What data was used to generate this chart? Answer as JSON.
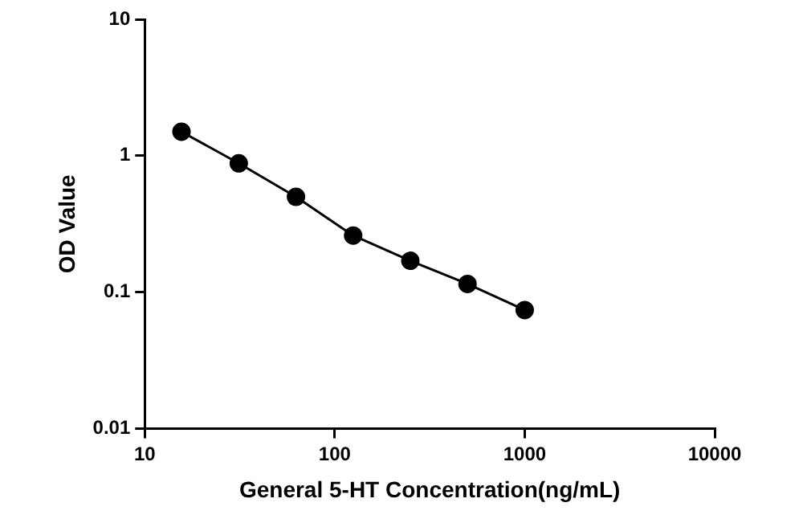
{
  "chart_data": {
    "type": "line",
    "xlabel": "General 5-HT Concentration(ng/mL)",
    "ylabel": "OD Value",
    "x": [
      15.6,
      31.25,
      62.5,
      125,
      250,
      500,
      1000
    ],
    "series": [
      {
        "color": "#000000",
        "values": [
          1.5,
          0.88,
          0.5,
          0.26,
          0.17,
          0.115,
          0.074
        ]
      }
    ],
    "log": "xy",
    "xlim": [
      10,
      10000
    ],
    "ylim": [
      0.01,
      10
    ],
    "xticks": [
      10,
      100,
      1000,
      10000
    ],
    "yticks": [
      0.01,
      0.1,
      1,
      10
    ],
    "grid": false,
    "legend": false,
    "marker": "circle",
    "line_style": "solid"
  }
}
